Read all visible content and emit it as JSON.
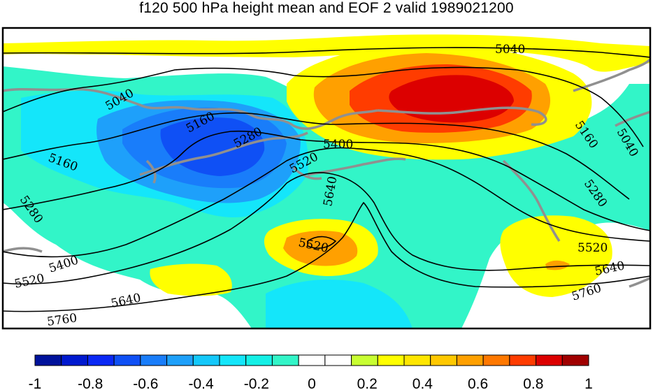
{
  "chart_data": {
    "type": "heatmap",
    "title": "f120 500 hPa height mean and EOF 2 valid 1989021200",
    "colorbar": {
      "min": -1,
      "max": 1,
      "step": 0.1,
      "tick_labels": [
        "-1",
        "-0.8",
        "-0.6",
        "-0.4",
        "-0.2",
        "0",
        "0.2",
        "0.4",
        "0.6",
        "0.8",
        "1"
      ],
      "colors": [
        "#00129b",
        "#0019cf",
        "#0a28f5",
        "#0f50f5",
        "#197dfa",
        "#1ea0fa",
        "#14c8fa",
        "#14e6fa",
        "#14f0e6",
        "#32f5c8",
        "#ffffff",
        "#ffffff",
        "#c8ff32",
        "#ffff00",
        "#ffe600",
        "#ffc800",
        "#ffa000",
        "#ff7800",
        "#ff3c00",
        "#dc0000",
        "#a00000"
      ]
    },
    "contour_labels": [
      "5040",
      "5040",
      "5040",
      "5160",
      "5160",
      "5160",
      "5280",
      "5280",
      "5280",
      "5400",
      "5400",
      "5520",
      "5520",
      "5520",
      "5520",
      "5640",
      "5640",
      "5640",
      "5760",
      "5760"
    ],
    "contour_levels": [
      5040,
      5160,
      5280,
      5400,
      5520,
      5640,
      5760
    ]
  }
}
